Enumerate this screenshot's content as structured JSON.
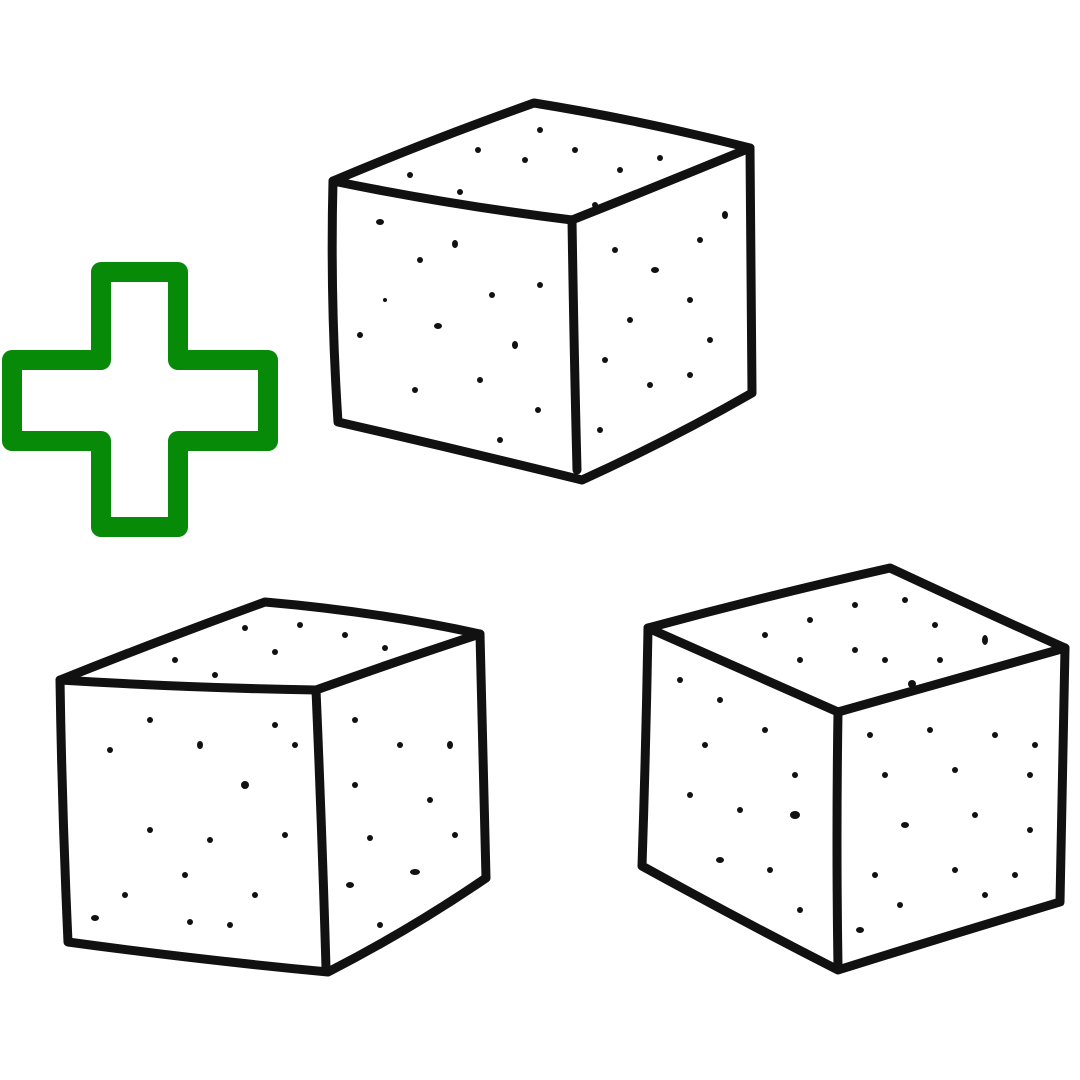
{
  "illustration": {
    "subject": "sugar-cubes",
    "cube_count": 3,
    "plus_icon_color": "#078a07",
    "outline_color": "#111111",
    "background_color": "#ffffff"
  }
}
